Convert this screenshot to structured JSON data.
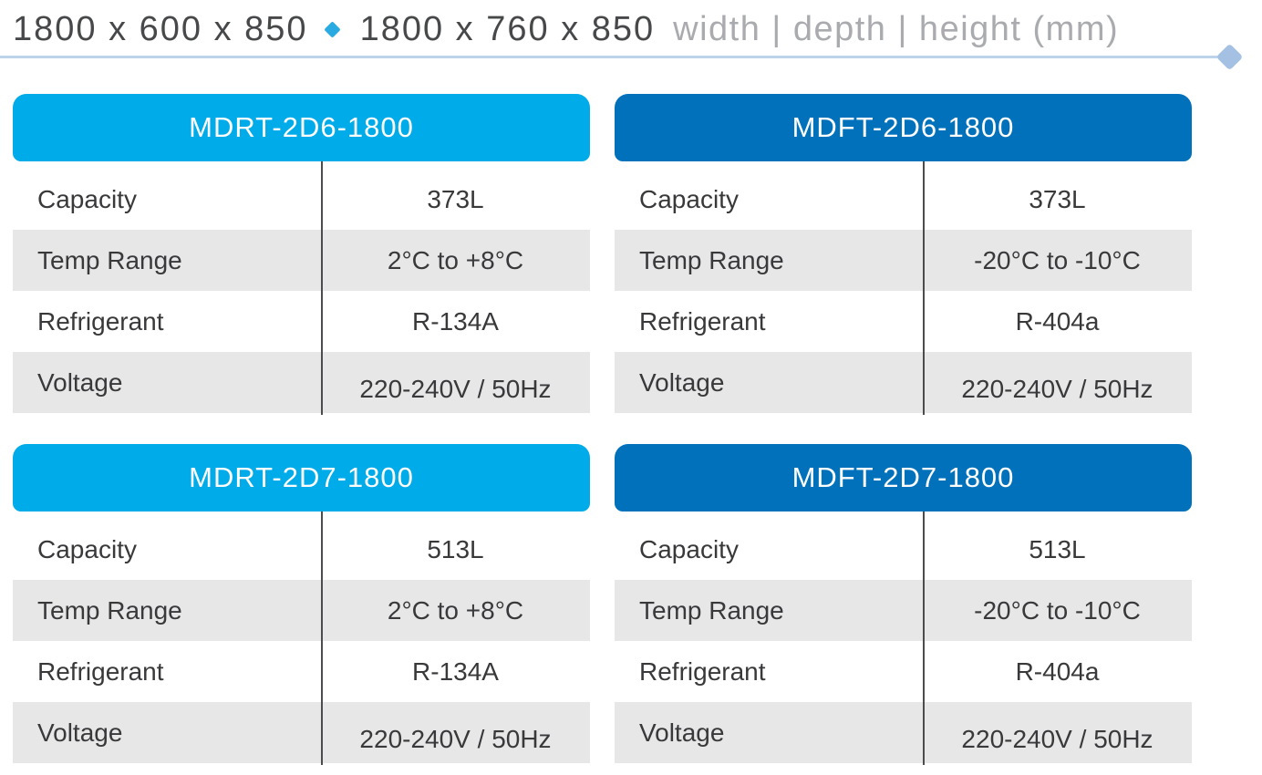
{
  "header": {
    "dimensions_a": "1800 x 600 x 850",
    "dimensions_b": "1800 x 760 x 850",
    "legend": "width | depth | height (mm)",
    "separator_diamond_color": "#29abe2",
    "rule_color": "#bdd3e9",
    "rule_diamond_color": "#a4c1e3",
    "text_color": "#47484a",
    "legend_color": "#a9abae"
  },
  "accent_colors": {
    "chiller_blue": "#00abe9",
    "freezer_blue": "#0071ba",
    "row_gray": "#e7e7e8"
  },
  "tables": [
    {
      "model": "MDRT-2D6-1800",
      "header_color": "#00abe9",
      "rows": [
        {
          "label": "Capacity",
          "value": "373L"
        },
        {
          "label": "Temp Range",
          "value": "2°C to +8°C"
        },
        {
          "label": "Refrigerant",
          "value": "R-134A"
        },
        {
          "label": "Voltage",
          "value": "220-240V / 50Hz"
        }
      ]
    },
    {
      "model": "MDFT-2D6-1800",
      "header_color": "#0071ba",
      "rows": [
        {
          "label": "Capacity",
          "value": "373L"
        },
        {
          "label": "Temp Range",
          "value": "-20°C to -10°C"
        },
        {
          "label": "Refrigerant",
          "value": "R-404a"
        },
        {
          "label": "Voltage",
          "value": "220-240V / 50Hz"
        }
      ]
    },
    {
      "model": "MDRT-2D7-1800",
      "header_color": "#00abe9",
      "rows": [
        {
          "label": "Capacity",
          "value": "513L"
        },
        {
          "label": "Temp Range",
          "value": "2°C to +8°C"
        },
        {
          "label": "Refrigerant",
          "value": "R-134A"
        },
        {
          "label": "Voltage",
          "value": "220-240V / 50Hz"
        }
      ]
    },
    {
      "model": "MDFT-2D7-1800",
      "header_color": "#0071ba",
      "rows": [
        {
          "label": "Capacity",
          "value": "513L"
        },
        {
          "label": "Temp Range",
          "value": "-20°C to -10°C"
        },
        {
          "label": "Refrigerant",
          "value": "R-404a"
        },
        {
          "label": "Voltage",
          "value": "220-240V / 50Hz"
        }
      ]
    }
  ]
}
